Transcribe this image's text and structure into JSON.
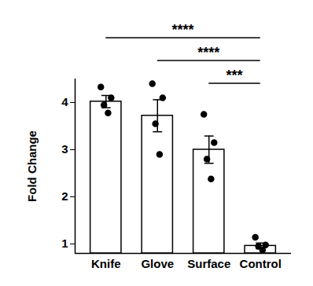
{
  "chart_data": {
    "type": "bar",
    "categories": [
      "Knife",
      "Glove",
      "Surface",
      "Control"
    ],
    "values": [
      4.02,
      3.72,
      3.0,
      0.96
    ],
    "errors": [
      0.13,
      0.34,
      0.29,
      0.06
    ],
    "points": [
      [
        4.33,
        4.1,
        3.95,
        3.78
      ],
      [
        4.4,
        4.1,
        3.55,
        2.9
      ],
      [
        3.75,
        3.15,
        2.8,
        2.38
      ],
      [
        1.14,
        0.98,
        0.95,
        0.87
      ]
    ],
    "color": "#ffffff",
    "ylabel": "Fold Change",
    "ylim": [
      0.8,
      4.5
    ],
    "yticks": [
      1,
      2,
      3,
      4
    ],
    "grid": false,
    "comparisons": [
      {
        "from": "Knife",
        "to": "Control",
        "label": "****"
      },
      {
        "from": "Glove",
        "to": "Control",
        "label": "****"
      },
      {
        "from": "Surface",
        "to": "Control",
        "label": "***"
      }
    ]
  }
}
